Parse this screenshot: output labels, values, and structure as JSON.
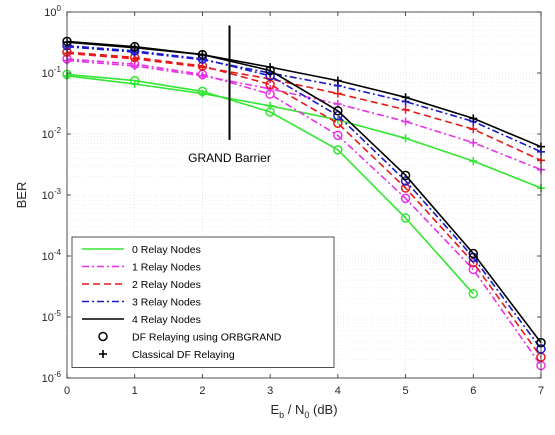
{
  "chart_data": {
    "type": "line",
    "title": "",
    "xlabel": {
      "main": "E",
      "sub": "b",
      "mid": " / N",
      "sub2": "0",
      "tail": " (dB)"
    },
    "ylabel": "BER",
    "xlim": [
      0,
      7
    ],
    "ylim": [
      1e-06,
      1
    ],
    "y_scale": "log",
    "grid": true,
    "x_ticks": [
      "0",
      "1",
      "2",
      "3",
      "4",
      "5",
      "6",
      "7"
    ],
    "y_ticks": [
      {
        "value": 1,
        "base": "10",
        "exp": "0"
      },
      {
        "value": 0.1,
        "base": "10",
        "exp": "-1"
      },
      {
        "value": 0.01,
        "base": "10",
        "exp": "-2"
      },
      {
        "value": 0.001,
        "base": "10",
        "exp": "-3"
      },
      {
        "value": 0.0001,
        "base": "10",
        "exp": "-4"
      },
      {
        "value": 1e-05,
        "base": "10",
        "exp": "-5"
      },
      {
        "value": 1e-06,
        "base": "10",
        "exp": "-6"
      }
    ],
    "legend_position": "bottom-left",
    "legend_entries": [
      {
        "label": "0 Relay Nodes",
        "color": "#33e633",
        "dash": "solid",
        "marker": "none"
      },
      {
        "label": "1 Relay Nodes",
        "color": "#e633e6",
        "dash": "dashdot",
        "marker": "none"
      },
      {
        "label": "2 Relay Nodes",
        "color": "#e61a1a",
        "dash": "dashed",
        "marker": "none"
      },
      {
        "label": "3 Relay Nodes",
        "color": "#1a1acc",
        "dash": "dashdot",
        "marker": "none"
      },
      {
        "label": "4 Relay Nodes",
        "color": "#000000",
        "dash": "solid",
        "marker": "none"
      },
      {
        "label": "DF Relaying using ORBGRAND",
        "color": "#000000",
        "dash": "none",
        "marker": "circle"
      },
      {
        "label": "Classical DF Relaying",
        "color": "#000000",
        "dash": "none",
        "marker": "plus"
      }
    ],
    "series": [
      {
        "relays": 0,
        "scheme": "orbgrand",
        "color": "#33e633",
        "dash": "solid",
        "marker": "circle",
        "x": [
          0,
          1,
          2,
          3,
          4,
          5,
          6
        ],
        "y": [
          0.095,
          0.075,
          0.05,
          0.023,
          0.0055,
          0.00042,
          2.4e-05
        ]
      },
      {
        "relays": 0,
        "scheme": "classical",
        "color": "#33e633",
        "dash": "solid",
        "marker": "plus",
        "x": [
          0,
          1,
          2,
          3,
          4,
          5,
          6,
          7
        ],
        "y": [
          0.09,
          0.066,
          0.046,
          0.029,
          0.017,
          0.0085,
          0.0036,
          0.0013
        ]
      },
      {
        "relays": 1,
        "scheme": "orbgrand",
        "color": "#e633e6",
        "dash": "dashdot",
        "marker": "circle",
        "x": [
          0,
          1,
          2,
          3,
          4,
          5,
          6,
          7
        ],
        "y": [
          0.17,
          0.14,
          0.095,
          0.045,
          0.0095,
          0.00088,
          6e-05,
          1.6e-06
        ]
      },
      {
        "relays": 1,
        "scheme": "classical",
        "color": "#e633e6",
        "dash": "dashdot",
        "marker": "plus",
        "x": [
          0,
          1,
          2,
          3,
          4,
          5,
          6,
          7
        ],
        "y": [
          0.16,
          0.13,
          0.09,
          0.055,
          0.031,
          0.016,
          0.0072,
          0.0026
        ]
      },
      {
        "relays": 2,
        "scheme": "orbgrand",
        "color": "#e61a1a",
        "dash": "dashed",
        "marker": "circle",
        "x": [
          0,
          1,
          2,
          3,
          4,
          5,
          6,
          7
        ],
        "y": [
          0.22,
          0.18,
          0.13,
          0.065,
          0.015,
          0.0013,
          7.8e-05,
          2.2e-06
        ]
      },
      {
        "relays": 2,
        "scheme": "classical",
        "color": "#e61a1a",
        "dash": "dashed",
        "marker": "plus",
        "x": [
          0,
          1,
          2,
          3,
          4,
          5,
          6,
          7
        ],
        "y": [
          0.21,
          0.17,
          0.125,
          0.08,
          0.046,
          0.025,
          0.012,
          0.0037
        ]
      },
      {
        "relays": 3,
        "scheme": "orbgrand",
        "color": "#1a1acc",
        "dash": "dashdot",
        "marker": "circle",
        "x": [
          0,
          1,
          2,
          3,
          4,
          5,
          6,
          7
        ],
        "y": [
          0.28,
          0.23,
          0.17,
          0.09,
          0.02,
          0.0017,
          9.5e-05,
          3e-06
        ]
      },
      {
        "relays": 3,
        "scheme": "classical",
        "color": "#1a1acc",
        "dash": "dashdot",
        "marker": "plus",
        "x": [
          0,
          1,
          2,
          3,
          4,
          5,
          6,
          7
        ],
        "y": [
          0.27,
          0.22,
          0.165,
          0.1,
          0.062,
          0.034,
          0.016,
          0.0051
        ]
      },
      {
        "relays": 4,
        "scheme": "orbgrand",
        "color": "#000000",
        "dash": "solid",
        "marker": "circle",
        "x": [
          0,
          1,
          2,
          3,
          4,
          5,
          6,
          7
        ],
        "y": [
          0.33,
          0.27,
          0.2,
          0.11,
          0.024,
          0.0021,
          0.00011,
          3.8e-06
        ]
      },
      {
        "relays": 4,
        "scheme": "classical",
        "color": "#000000",
        "dash": "solid",
        "marker": "plus",
        "x": [
          0,
          1,
          2,
          3,
          4,
          5,
          6,
          7
        ],
        "y": [
          0.32,
          0.26,
          0.2,
          0.125,
          0.075,
          0.04,
          0.018,
          0.0062
        ]
      }
    ],
    "annotations": [
      {
        "text": "GRAND Barrier",
        "x": 2.4,
        "y_top": 0.6,
        "y_bottom": 0.008
      }
    ]
  }
}
